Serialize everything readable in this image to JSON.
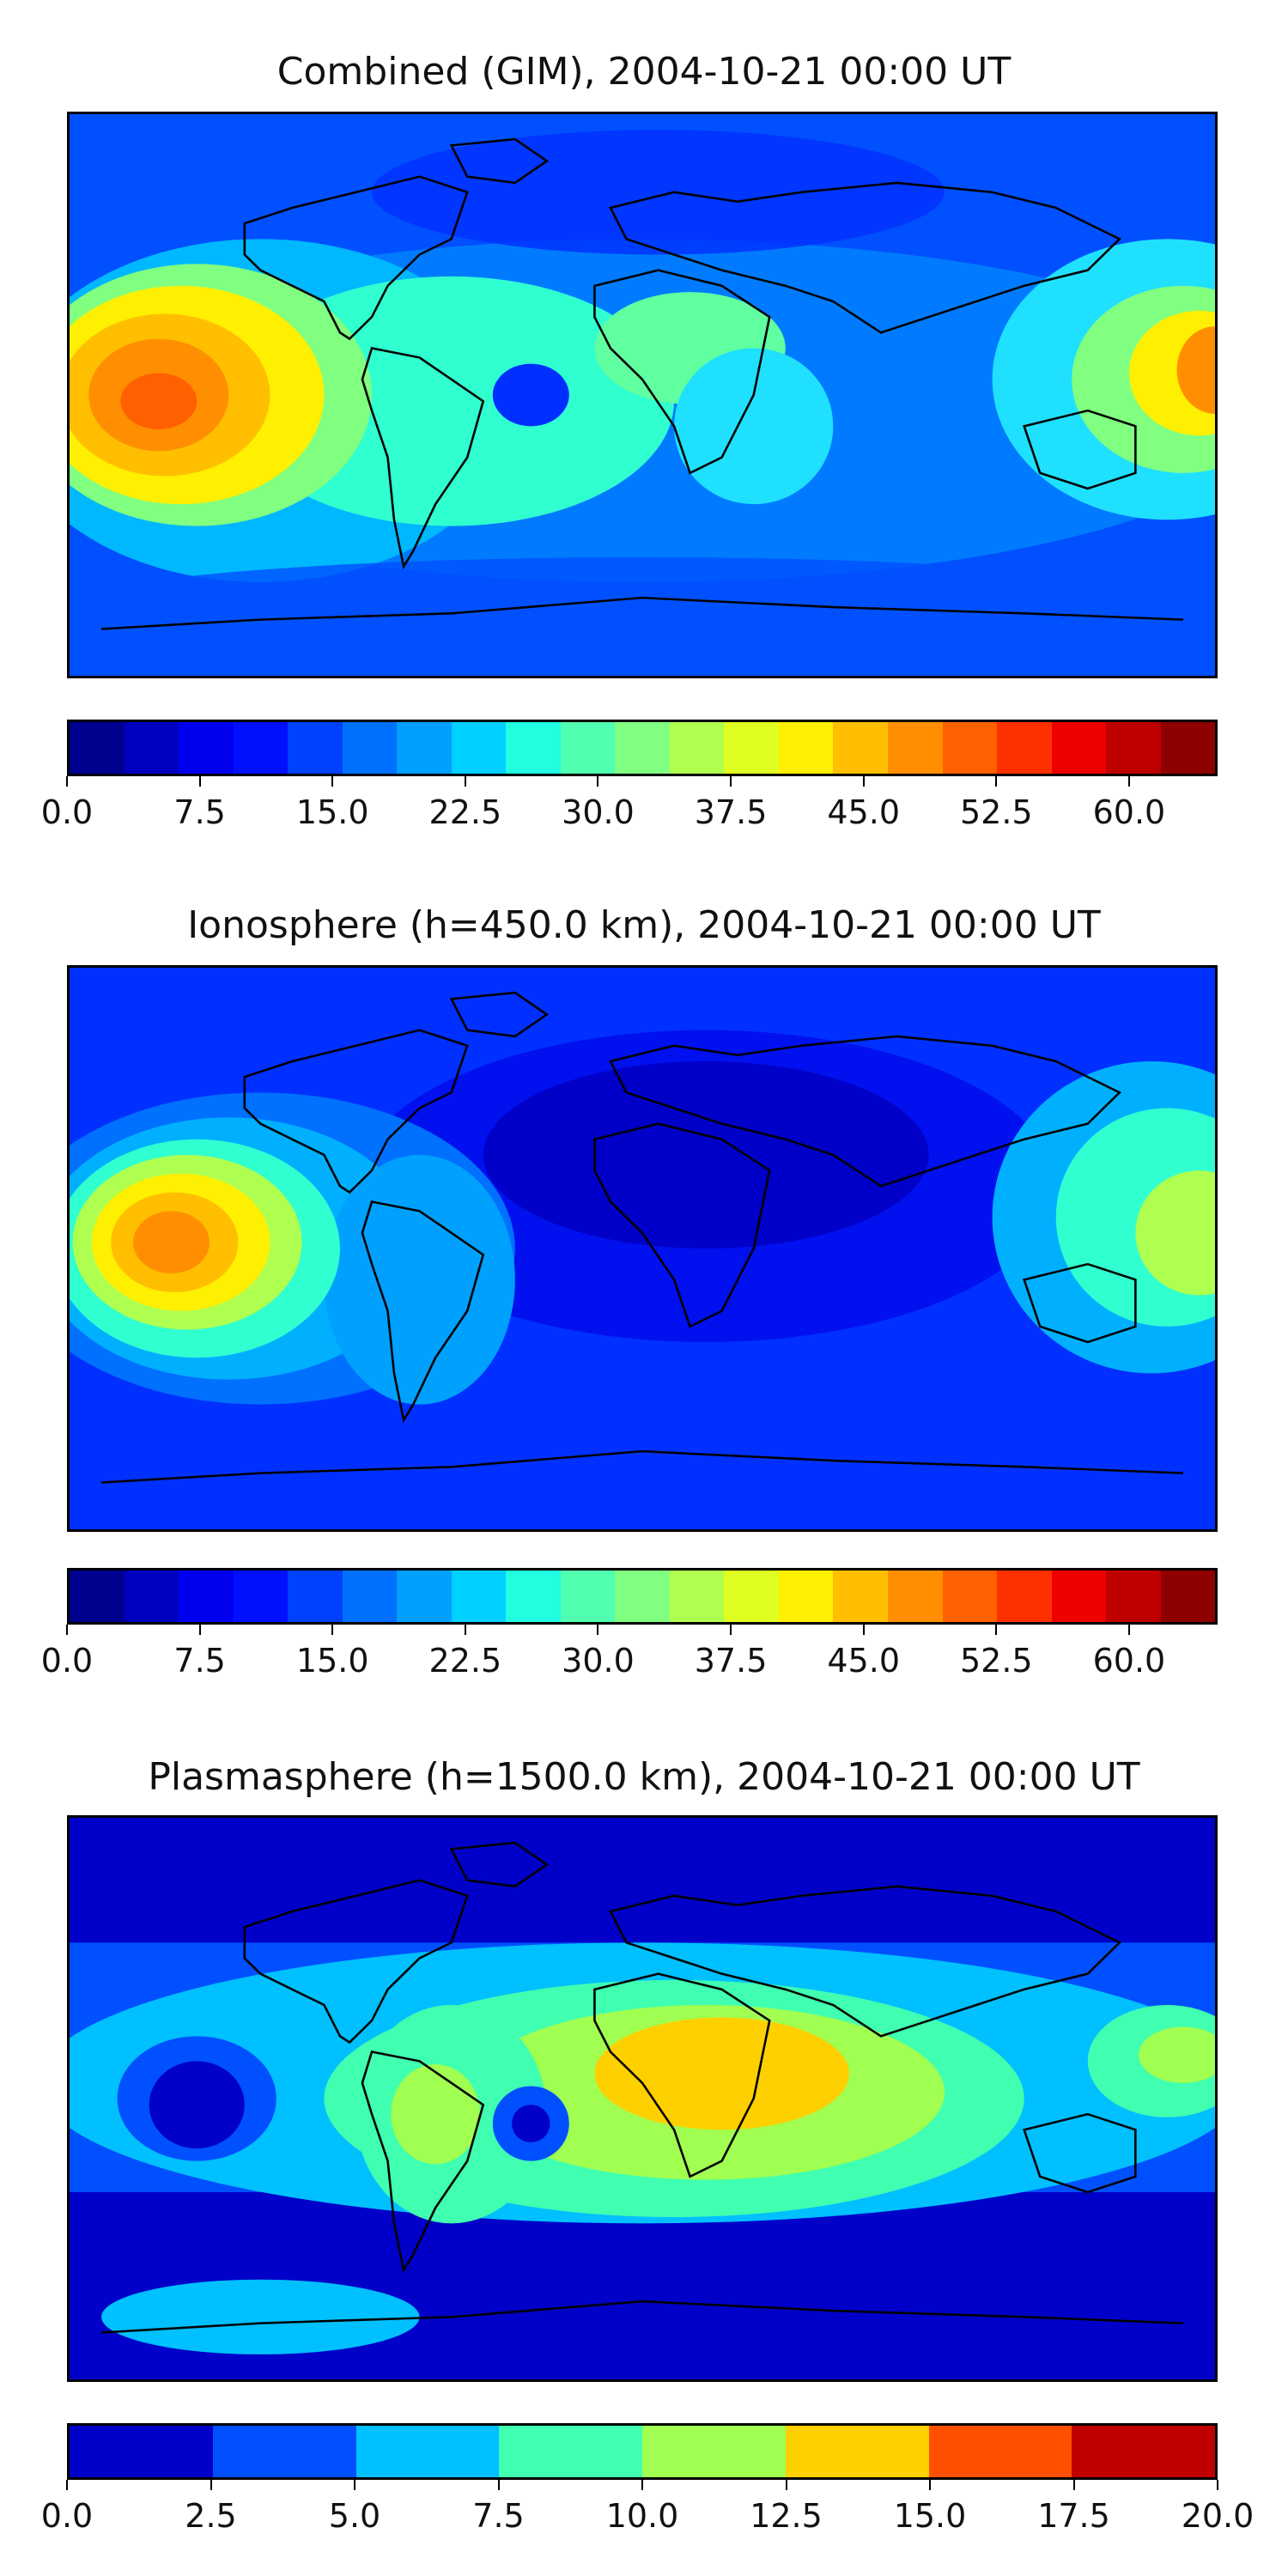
{
  "panels": [
    {
      "title": "Combined (GIM), 2004-10-21 00:00 UT",
      "colorbar": {
        "colors": [
          "#00008f",
          "#0000bf",
          "#0000ef",
          "#0010ff",
          "#0040ff",
          "#0070ff",
          "#00a0ff",
          "#00d0ff",
          "#20ffdf",
          "#50ffaf",
          "#80ff80",
          "#afff50",
          "#dfff20",
          "#ffef00",
          "#ffbf00",
          "#ff8f00",
          "#ff6000",
          "#ff3000",
          "#ef0000",
          "#bf0000",
          "#8f0000"
        ],
        "tick_labels": [
          "0.0",
          "7.5",
          "15.0",
          "22.5",
          "30.0",
          "37.5",
          "45.0",
          "52.5",
          "60.0"
        ],
        "ticks": [
          0,
          7.5,
          15,
          22.5,
          30,
          37.5,
          45,
          52.5,
          60
        ],
        "range": [
          0,
          65
        ]
      }
    },
    {
      "title": "Ionosphere  (h=450.0 km), 2004-10-21 00:00 UT",
      "colorbar": {
        "colors": [
          "#00008f",
          "#0000bf",
          "#0000ef",
          "#0010ff",
          "#0040ff",
          "#0070ff",
          "#00a0ff",
          "#00d0ff",
          "#20ffdf",
          "#50ffaf",
          "#80ff80",
          "#afff50",
          "#dfff20",
          "#ffef00",
          "#ffbf00",
          "#ff8f00",
          "#ff6000",
          "#ff3000",
          "#ef0000",
          "#bf0000",
          "#8f0000"
        ],
        "tick_labels": [
          "0.0",
          "7.5",
          "15.0",
          "22.5",
          "30.0",
          "37.5",
          "45.0",
          "52.5",
          "60.0"
        ],
        "ticks": [
          0,
          7.5,
          15,
          22.5,
          30,
          37.5,
          45,
          52.5,
          60
        ],
        "range": [
          0,
          65
        ]
      }
    },
    {
      "title": "Plasmasphere (h=1500.0 km), 2004-10-21 00:00 UT",
      "colorbar": {
        "colors": [
          "#0000c8",
          "#0050ff",
          "#00c0ff",
          "#40ffb0",
          "#a0ff50",
          "#ffd000",
          "#ff5000",
          "#c00000"
        ],
        "tick_labels": [
          "0.0",
          "2.5",
          "5.0",
          "7.5",
          "10.0",
          "12.5",
          "15.0",
          "17.5",
          "20.0"
        ],
        "ticks": [
          0,
          2.5,
          5,
          7.5,
          10,
          12.5,
          15,
          17.5,
          20
        ],
        "range": [
          0,
          20
        ]
      }
    }
  ]
}
